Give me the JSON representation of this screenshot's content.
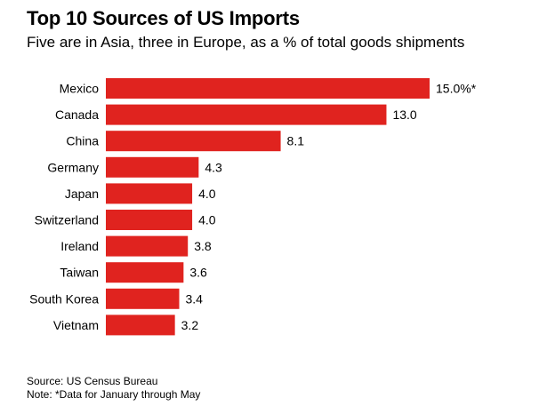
{
  "chart_data": {
    "type": "bar",
    "orientation": "horizontal",
    "title": "Top 10 Sources of US Imports",
    "subtitle": "Five are in Asia, three in Europe, as a % of total goods shipments",
    "categories": [
      "Mexico",
      "Canada",
      "China",
      "Germany",
      "Japan",
      "Switzerland",
      "Ireland",
      "Taiwan",
      "South Korea",
      "Vietnam"
    ],
    "values": [
      15.0,
      13.0,
      8.1,
      4.3,
      4.0,
      4.0,
      3.8,
      3.6,
      3.4,
      3.2
    ],
    "value_labels": [
      "15.0%*",
      "13.0",
      "8.1",
      "4.3",
      "4.0",
      "4.0",
      "3.8",
      "3.6",
      "3.4",
      "3.2"
    ],
    "bar_color": "#e0231f",
    "xlim": [
      0,
      15
    ],
    "grid": false,
    "source": "Source: US Census Bureau",
    "note": "Note: *Data for January through May"
  }
}
